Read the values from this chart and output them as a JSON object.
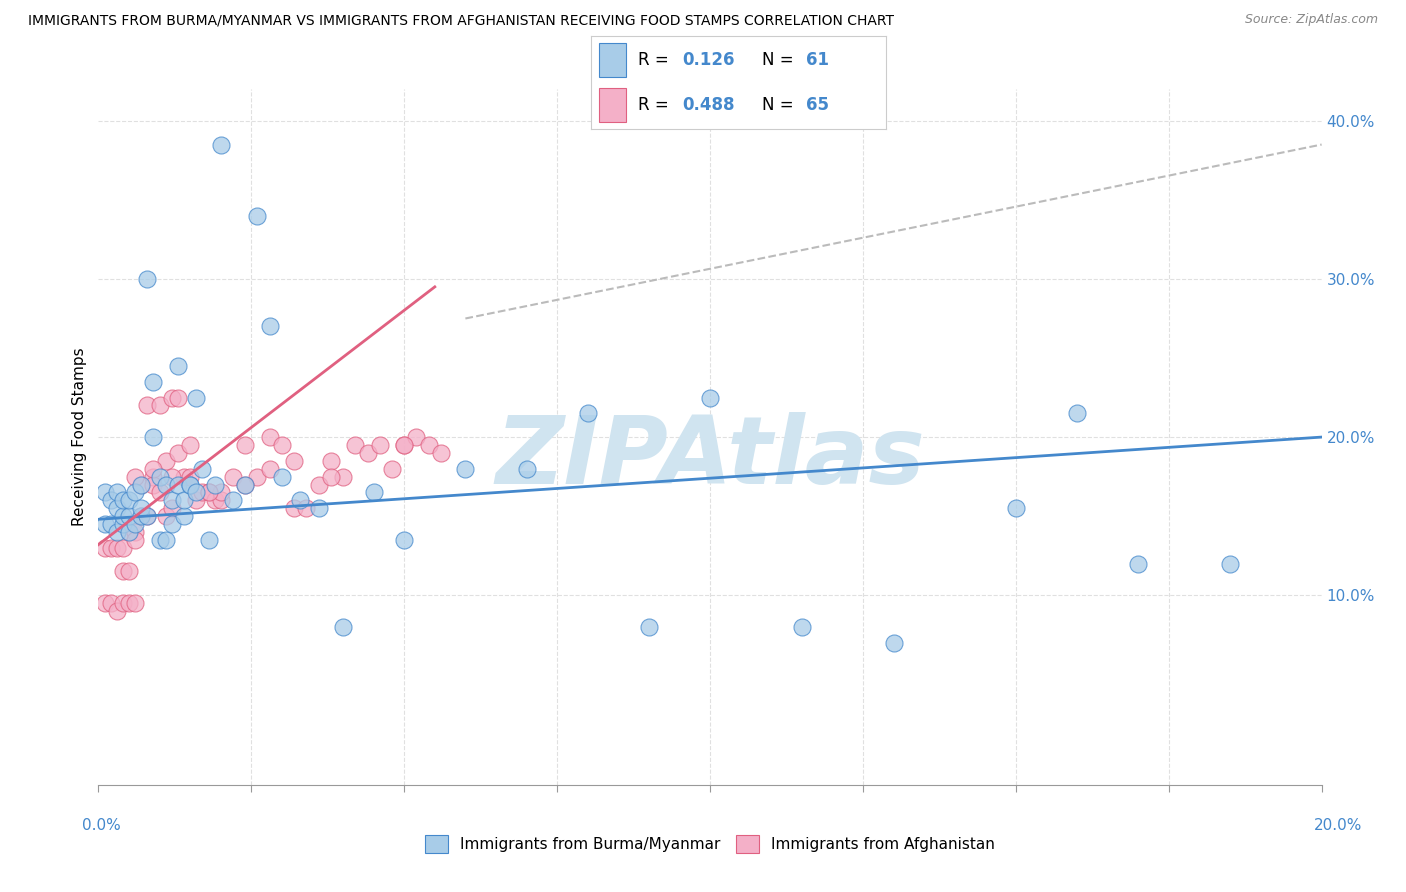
{
  "title": "IMMIGRANTS FROM BURMA/MYANMAR VS IMMIGRANTS FROM AFGHANISTAN RECEIVING FOOD STAMPS CORRELATION CHART",
  "source": "Source: ZipAtlas.com",
  "ylabel": "Receiving Food Stamps",
  "yticks": [
    0.0,
    0.1,
    0.2,
    0.3,
    0.4
  ],
  "ytick_labels": [
    "",
    "10.0%",
    "20.0%",
    "30.0%",
    "40.0%"
  ],
  "xlim": [
    0.0,
    0.2
  ],
  "ylim": [
    -0.02,
    0.42
  ],
  "r_burma": 0.126,
  "n_burma": 61,
  "r_afghan": 0.488,
  "n_afghan": 65,
  "color_burma": "#a8cce8",
  "color_afghan": "#f4b0c8",
  "color_burma_line": "#4488cc",
  "color_afghan_line": "#e06080",
  "color_ref_line": "#bbbbbb",
  "watermark_text": "ZIPAtlas",
  "watermark_color": "#d0e4f0",
  "burma_line_x": [
    0.0,
    0.2
  ],
  "burma_line_y": [
    0.148,
    0.2
  ],
  "afghan_line_x": [
    0.0,
    0.055
  ],
  "afghan_line_y": [
    0.132,
    0.295
  ],
  "ref_line_x": [
    0.06,
    0.2
  ],
  "ref_line_y": [
    0.275,
    0.385
  ],
  "burma_x": [
    0.001,
    0.001,
    0.002,
    0.002,
    0.003,
    0.003,
    0.003,
    0.004,
    0.004,
    0.004,
    0.005,
    0.005,
    0.005,
    0.006,
    0.006,
    0.007,
    0.007,
    0.007,
    0.008,
    0.008,
    0.009,
    0.009,
    0.01,
    0.01,
    0.011,
    0.011,
    0.012,
    0.012,
    0.013,
    0.013,
    0.014,
    0.014,
    0.015,
    0.015,
    0.016,
    0.016,
    0.017,
    0.018,
    0.019,
    0.02,
    0.022,
    0.024,
    0.026,
    0.028,
    0.03,
    0.033,
    0.036,
    0.04,
    0.045,
    0.05,
    0.06,
    0.07,
    0.08,
    0.09,
    0.1,
    0.115,
    0.13,
    0.15,
    0.16,
    0.17,
    0.185
  ],
  "burma_y": [
    0.145,
    0.165,
    0.145,
    0.16,
    0.14,
    0.155,
    0.165,
    0.145,
    0.15,
    0.16,
    0.14,
    0.15,
    0.16,
    0.145,
    0.165,
    0.15,
    0.155,
    0.17,
    0.15,
    0.3,
    0.2,
    0.235,
    0.175,
    0.135,
    0.17,
    0.135,
    0.145,
    0.16,
    0.17,
    0.245,
    0.15,
    0.16,
    0.17,
    0.17,
    0.225,
    0.165,
    0.18,
    0.135,
    0.17,
    0.385,
    0.16,
    0.17,
    0.34,
    0.27,
    0.175,
    0.16,
    0.155,
    0.08,
    0.165,
    0.135,
    0.18,
    0.18,
    0.215,
    0.08,
    0.225,
    0.08,
    0.07,
    0.155,
    0.215,
    0.12,
    0.12
  ],
  "afghan_x": [
    0.001,
    0.001,
    0.002,
    0.002,
    0.003,
    0.003,
    0.004,
    0.004,
    0.004,
    0.005,
    0.005,
    0.005,
    0.006,
    0.006,
    0.006,
    0.007,
    0.007,
    0.008,
    0.008,
    0.009,
    0.009,
    0.01,
    0.01,
    0.011,
    0.011,
    0.012,
    0.012,
    0.013,
    0.013,
    0.014,
    0.015,
    0.016,
    0.017,
    0.018,
    0.019,
    0.02,
    0.022,
    0.024,
    0.026,
    0.028,
    0.03,
    0.032,
    0.034,
    0.036,
    0.038,
    0.04,
    0.042,
    0.044,
    0.046,
    0.048,
    0.05,
    0.052,
    0.054,
    0.056,
    0.05,
    0.038,
    0.032,
    0.028,
    0.024,
    0.02,
    0.018,
    0.015,
    0.012,
    0.009,
    0.006
  ],
  "afghan_y": [
    0.095,
    0.13,
    0.095,
    0.13,
    0.09,
    0.13,
    0.13,
    0.115,
    0.095,
    0.14,
    0.115,
    0.095,
    0.14,
    0.135,
    0.095,
    0.15,
    0.17,
    0.15,
    0.22,
    0.175,
    0.17,
    0.22,
    0.165,
    0.15,
    0.185,
    0.155,
    0.225,
    0.19,
    0.225,
    0.175,
    0.195,
    0.16,
    0.165,
    0.165,
    0.16,
    0.16,
    0.175,
    0.195,
    0.175,
    0.2,
    0.195,
    0.155,
    0.155,
    0.17,
    0.185,
    0.175,
    0.195,
    0.19,
    0.195,
    0.18,
    0.195,
    0.2,
    0.195,
    0.19,
    0.195,
    0.175,
    0.185,
    0.18,
    0.17,
    0.165,
    0.165,
    0.175,
    0.175,
    0.18,
    0.175
  ]
}
